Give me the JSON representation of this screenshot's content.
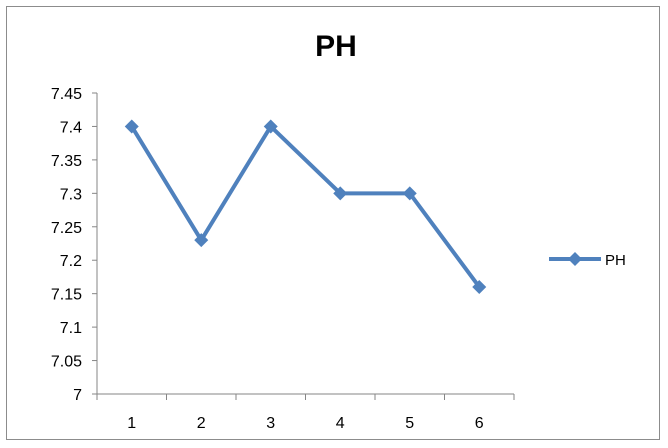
{
  "chart_data": {
    "type": "line",
    "title": "PH",
    "xlabel": "",
    "ylabel": "",
    "categories": [
      "1",
      "2",
      "3",
      "4",
      "5",
      "6"
    ],
    "series": [
      {
        "name": "PH",
        "values": [
          7.4,
          7.23,
          7.4,
          7.3,
          7.3,
          7.16
        ],
        "color": "#4f81bd",
        "marker": "diamond"
      }
    ],
    "ylim": [
      7.0,
      7.45
    ],
    "yticks": [
      "7",
      "7.05",
      "7.1",
      "7.15",
      "7.2",
      "7.25",
      "7.3",
      "7.35",
      "7.4",
      "7.45"
    ],
    "grid": false,
    "legend": "right"
  }
}
